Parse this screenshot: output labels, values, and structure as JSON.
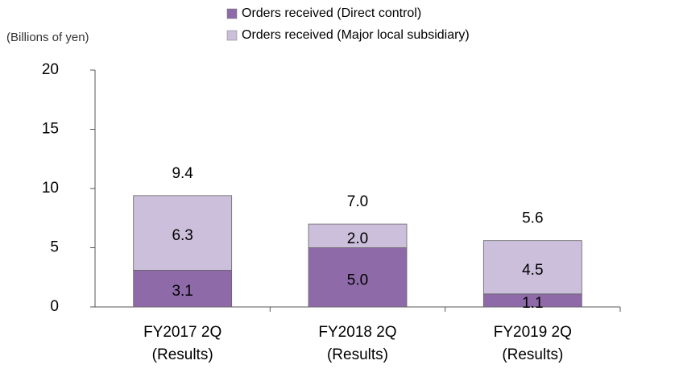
{
  "chart_data": {
    "type": "stacked_bar",
    "y_axis_label": "(Billions of yen)",
    "categories": [
      [
        "FY2017 2Q",
        "(Results)"
      ],
      [
        "FY2018 2Q",
        "(Results)"
      ],
      [
        "FY2019 2Q",
        "(Results)"
      ]
    ],
    "series": [
      {
        "name": "Orders received (Direct control)",
        "color": "#8e6aa8",
        "values": [
          3.1,
          5.0,
          1.1
        ],
        "value_labels": [
          "3.1",
          "5.0",
          "1.1"
        ]
      },
      {
        "name": "Orders received (Major local subsidiary)",
        "color": "#cbbfdc",
        "values": [
          6.3,
          2.0,
          4.5
        ],
        "value_labels": [
          "6.3",
          "2.0",
          "4.5"
        ]
      }
    ],
    "totals": [
      9.4,
      7.0,
      5.6
    ],
    "total_labels": [
      "9.4",
      "7.0",
      "5.6"
    ],
    "ylim": [
      0,
      20
    ],
    "yticks": [
      0,
      5,
      10,
      15,
      20
    ],
    "grid": false
  }
}
